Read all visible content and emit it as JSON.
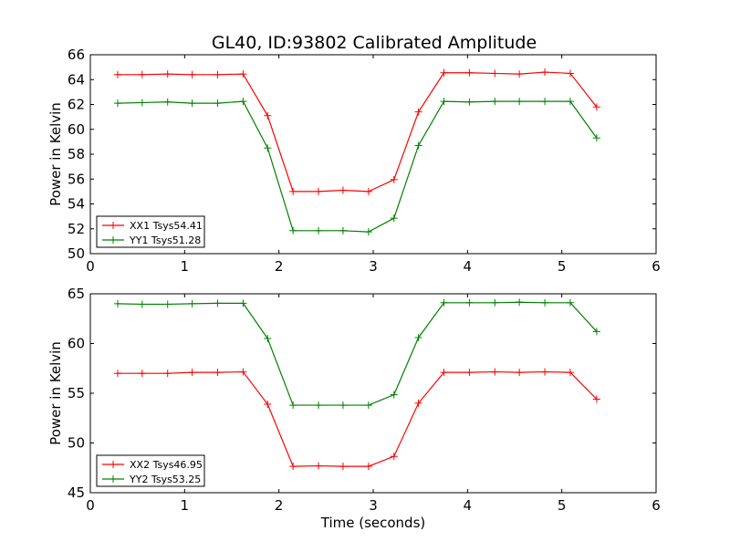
{
  "chart_data": [
    {
      "type": "line",
      "title": "GL40, ID:93802 Calibrated Amplitude",
      "xlabel": "",
      "ylabel": "Power in Kelvin",
      "xlim": [
        0,
        6
      ],
      "ylim": [
        50,
        66
      ],
      "xticks": [
        0,
        1,
        2,
        3,
        4,
        5,
        6
      ],
      "yticks": [
        50,
        52,
        54,
        56,
        58,
        60,
        62,
        64,
        66
      ],
      "grid": false,
      "legend_position": "lower-left",
      "x": [
        0.29,
        0.55,
        0.82,
        1.08,
        1.35,
        1.62,
        1.88,
        2.15,
        2.42,
        2.68,
        2.95,
        3.22,
        3.48,
        3.75,
        4.02,
        4.29,
        4.55,
        4.82,
        5.09,
        5.37
      ],
      "series": [
        {
          "name": "XX1 Tsys54.41",
          "color": "#ff0000",
          "values": [
            64.4,
            64.4,
            64.45,
            64.4,
            64.4,
            64.45,
            61.1,
            55.0,
            55.0,
            55.1,
            55.0,
            55.95,
            61.4,
            64.55,
            64.55,
            64.5,
            64.45,
            64.6,
            64.5,
            61.8
          ]
        },
        {
          "name": "YY1 Tsys51.28",
          "color": "#008000",
          "values": [
            62.1,
            62.15,
            62.2,
            62.1,
            62.1,
            62.25,
            58.5,
            51.85,
            51.85,
            51.85,
            51.75,
            52.85,
            58.7,
            62.25,
            62.2,
            62.25,
            62.25,
            62.25,
            62.25,
            59.3
          ]
        }
      ]
    },
    {
      "type": "line",
      "title": "",
      "xlabel": "Time (seconds)",
      "ylabel": "Power in Kelvin",
      "xlim": [
        0,
        6
      ],
      "ylim": [
        45,
        65
      ],
      "xticks": [
        0,
        1,
        2,
        3,
        4,
        5,
        6
      ],
      "yticks": [
        45,
        50,
        55,
        60,
        65
      ],
      "grid": false,
      "legend_position": "lower-left",
      "x": [
        0.29,
        0.55,
        0.82,
        1.08,
        1.35,
        1.62,
        1.88,
        2.15,
        2.42,
        2.68,
        2.95,
        3.22,
        3.48,
        3.75,
        4.02,
        4.29,
        4.55,
        4.82,
        5.09,
        5.37
      ],
      "series": [
        {
          "name": "XX2 Tsys46.95",
          "color": "#ff0000",
          "values": [
            57.0,
            57.0,
            57.0,
            57.1,
            57.1,
            57.15,
            53.9,
            47.65,
            47.7,
            47.65,
            47.65,
            48.65,
            54.0,
            57.1,
            57.1,
            57.15,
            57.1,
            57.15,
            57.1,
            54.4
          ]
        },
        {
          "name": "YY2 Tsys53.25",
          "color": "#008000",
          "values": [
            64.0,
            63.95,
            63.95,
            64.0,
            64.05,
            64.05,
            60.5,
            53.8,
            53.8,
            53.8,
            53.8,
            54.85,
            60.6,
            64.1,
            64.1,
            64.1,
            64.15,
            64.1,
            64.1,
            61.2
          ]
        }
      ]
    }
  ]
}
